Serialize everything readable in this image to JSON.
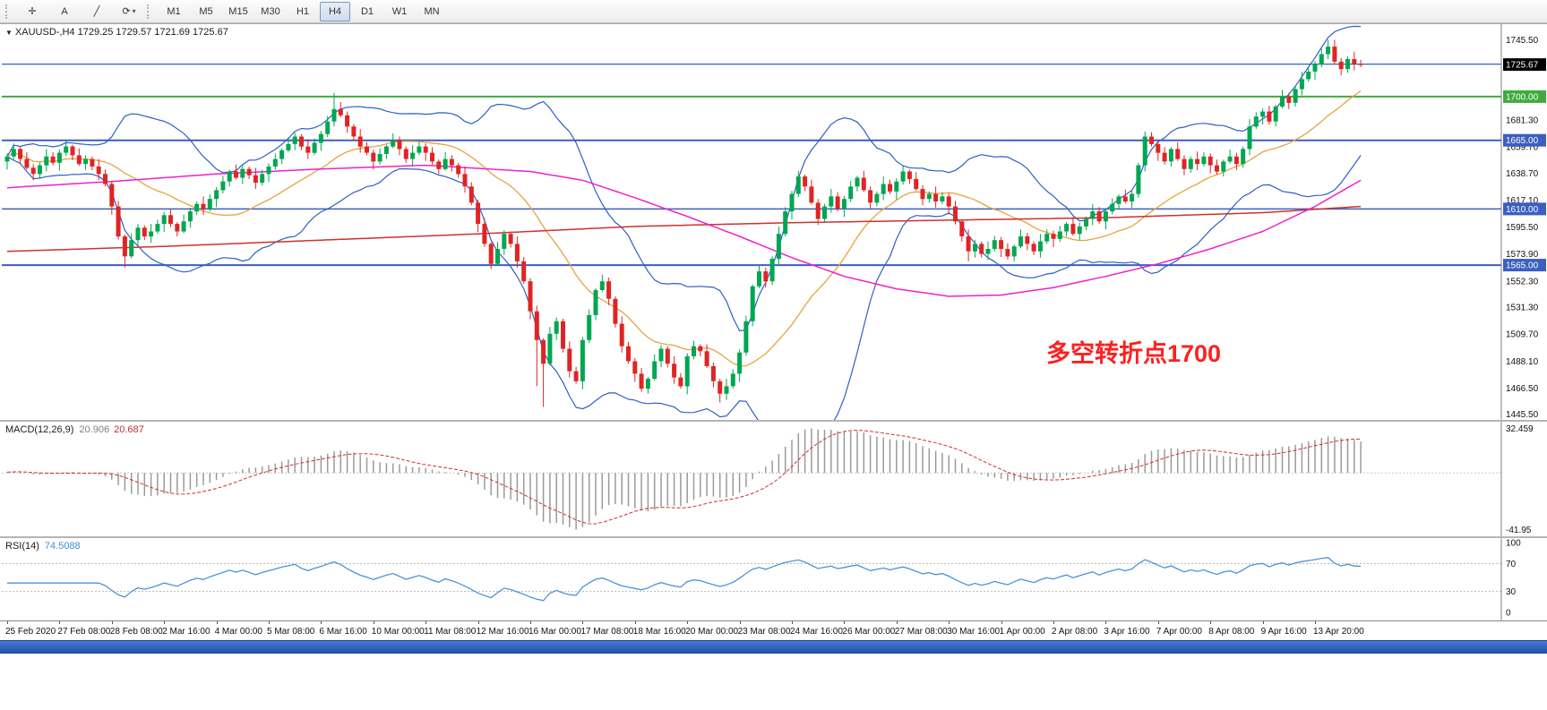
{
  "toolbar": {
    "tools": [
      {
        "name": "crosshair-tool",
        "glyph": "✛",
        "caret": false
      },
      {
        "name": "text-tool",
        "glyph": "A",
        "caret": false
      },
      {
        "name": "trendline-tool",
        "glyph": "╱",
        "caret": false
      },
      {
        "name": "cycle-lines-tool",
        "glyph": "⟳",
        "caret": true
      }
    ],
    "timeframes": [
      "M1",
      "M5",
      "M15",
      "M30",
      "H1",
      "H4",
      "D1",
      "W1",
      "MN"
    ],
    "active_timeframe": "H4"
  },
  "chart": {
    "symbol_line": "XAUUSD-,H4  1729.25 1729.57 1721.69 1725.67",
    "symbol": "XAUUSD-",
    "period": "H4",
    "ohlc": {
      "open": "1729.25",
      "high": "1729.57",
      "low": "1721.69",
      "close": "1725.67"
    },
    "annotation": {
      "text": "多空转折点1700",
      "color": "#ff1f1f"
    }
  },
  "price_axis": {
    "labels": [
      {
        "text": "1745.50",
        "price": 1745.5
      },
      {
        "text": "1681.30",
        "price": 1681.3
      },
      {
        "text": "1659.70",
        "price": 1659.7
      },
      {
        "text": "1638.70",
        "price": 1638.7
      },
      {
        "text": "1617.10",
        "price": 1617.1
      },
      {
        "text": "1595.50",
        "price": 1595.5
      },
      {
        "text": "1573.90",
        "price": 1573.9
      },
      {
        "text": "1552.30",
        "price": 1552.3
      },
      {
        "text": "1531.30",
        "price": 1531.3
      },
      {
        "text": "1509.70",
        "price": 1509.7
      },
      {
        "text": "1488.10",
        "price": 1488.1
      },
      {
        "text": "1466.50",
        "price": 1466.5
      },
      {
        "text": "1445.50",
        "price": 1445.5
      }
    ],
    "tags": [
      {
        "text": "1725.67",
        "price": 1725.67,
        "bg": "#000000"
      },
      {
        "text": "1700.00",
        "price": 1700.0,
        "bg": "#3faa3f"
      },
      {
        "text": "1665.00",
        "price": 1665.0,
        "bg": "#3b5fc0"
      },
      {
        "text": "1610.00",
        "price": 1610.0,
        "bg": "#3b5fc0"
      },
      {
        "text": "1565.00",
        "price": 1565.0,
        "bg": "#3b5fc0"
      }
    ]
  },
  "hlines": [
    {
      "price": 1726.0,
      "color": "#3b5fc0",
      "w": 1.3
    },
    {
      "price": 1700.0,
      "color": "#3faa3f",
      "w": 2
    },
    {
      "price": 1665.0,
      "color": "#3b5fc0",
      "w": 2
    },
    {
      "price": 1610.0,
      "color": "#3b5fc0",
      "w": 1.5
    },
    {
      "price": 1565.0,
      "color": "#3b5fc0",
      "w": 2
    }
  ],
  "macd": {
    "label": "MACD(12,26,9)",
    "value_main": "20.906",
    "value_signal": "20.687",
    "axis": [
      {
        "text": "32.459",
        "v": 33
      },
      {
        "text": "-41.95",
        "v": -42
      }
    ]
  },
  "rsi": {
    "label": "RSI(14)",
    "value": "74.5088",
    "period": 14,
    "levels": [
      70,
      30
    ],
    "axis": [
      {
        "text": "100",
        "v": 100
      },
      {
        "text": "70",
        "v": 70
      },
      {
        "text": "30",
        "v": 30
      },
      {
        "text": "0",
        "v": 0
      }
    ]
  },
  "colors": {
    "up": "#00a651",
    "down": "#e02424",
    "bollinger": "#2f5fc4",
    "ma_fast": "#e8a33d",
    "ma_slow_red": "#d03030",
    "ma_slow_magenta": "#ee22cc",
    "macd_hist": "#9a9a9a",
    "macd_signal": "#d03030",
    "rsi_line": "#4b93d9",
    "axis_text": "#111111"
  },
  "chart_data": {
    "type": "candlestick",
    "symbol": "XAUUSD",
    "timeframe": "H4",
    "price_range": [
      1441,
      1758
    ],
    "first_open": 1648,
    "closes": [
      1652,
      1658,
      1650,
      1643,
      1638,
      1645,
      1652,
      1647,
      1655,
      1660,
      1653,
      1646,
      1650,
      1644,
      1638,
      1630,
      1612,
      1588,
      1572,
      1585,
      1595,
      1588,
      1592,
      1598,
      1605,
      1598,
      1592,
      1600,
      1608,
      1614,
      1610,
      1618,
      1625,
      1632,
      1640,
      1635,
      1642,
      1637,
      1631,
      1638,
      1644,
      1650,
      1657,
      1662,
      1668,
      1660,
      1655,
      1663,
      1670,
      1680,
      1690,
      1685,
      1676,
      1668,
      1660,
      1655,
      1648,
      1654,
      1660,
      1665,
      1658,
      1650,
      1655,
      1660,
      1655,
      1648,
      1642,
      1650,
      1645,
      1638,
      1628,
      1615,
      1598,
      1582,
      1566,
      1578,
      1590,
      1582,
      1568,
      1552,
      1528,
      1505,
      1486,
      1510,
      1520,
      1498,
      1480,
      1472,
      1505,
      1525,
      1545,
      1552,
      1538,
      1518,
      1500,
      1488,
      1478,
      1466,
      1474,
      1488,
      1498,
      1486,
      1475,
      1468,
      1492,
      1500,
      1496,
      1484,
      1472,
      1462,
      1468,
      1478,
      1495,
      1520,
      1548,
      1560,
      1552,
      1570,
      1590,
      1608,
      1622,
      1636,
      1628,
      1615,
      1602,
      1612,
      1620,
      1610,
      1618,
      1628,
      1635,
      1625,
      1615,
      1622,
      1630,
      1624,
      1632,
      1640,
      1634,
      1626,
      1618,
      1622,
      1616,
      1620,
      1612,
      1600,
      1588,
      1576,
      1582,
      1574,
      1578,
      1585,
      1578,
      1572,
      1580,
      1588,
      1582,
      1576,
      1584,
      1590,
      1586,
      1592,
      1598,
      1590,
      1596,
      1602,
      1608,
      1600,
      1608,
      1614,
      1620,
      1616,
      1622,
      1645,
      1668,
      1662,
      1655,
      1648,
      1658,
      1650,
      1642,
      1650,
      1646,
      1652,
      1645,
      1640,
      1648,
      1652,
      1646,
      1658,
      1676,
      1684,
      1688,
      1680,
      1692,
      1700,
      1695,
      1706,
      1714,
      1720,
      1726,
      1734,
      1740,
      1728,
      1722,
      1730,
      1726,
      1725.67
    ],
    "wick_up": [
      2.5,
      4.5,
      1.5,
      5.5,
      3,
      2,
      6,
      3.5
    ],
    "wick_down": [
      3,
      5,
      2,
      6.5,
      2.5,
      4,
      1.5,
      5
    ],
    "wick_overrides": {
      "18": {
        "low": 1563
      },
      "50": {
        "high": 1703
      },
      "81": {
        "low": 1468
      },
      "82": {
        "low": 1451.5
      },
      "109": {
        "low": 1455
      },
      "147": {
        "low": 1568
      },
      "174": {
        "high": 1672
      },
      "202": {
        "high": 1745.5
      }
    },
    "ma_red_points": [
      [
        0,
        1576
      ],
      [
        24,
        1580
      ],
      [
        48,
        1585
      ],
      [
        72,
        1590
      ],
      [
        96,
        1596
      ],
      [
        120,
        1599
      ],
      [
        144,
        1601
      ],
      [
        168,
        1603
      ],
      [
        192,
        1607
      ],
      [
        207,
        1612
      ]
    ],
    "ma_magenta_points": [
      [
        0,
        1627
      ],
      [
        16,
        1632
      ],
      [
        32,
        1638
      ],
      [
        48,
        1642
      ],
      [
        64,
        1645
      ],
      [
        80,
        1640
      ],
      [
        88,
        1633
      ],
      [
        96,
        1619
      ],
      [
        104,
        1604
      ],
      [
        112,
        1588
      ],
      [
        120,
        1571
      ],
      [
        128,
        1556
      ],
      [
        136,
        1546
      ],
      [
        144,
        1540
      ],
      [
        152,
        1541
      ],
      [
        160,
        1547
      ],
      [
        168,
        1556
      ],
      [
        176,
        1566
      ],
      [
        184,
        1578
      ],
      [
        192,
        1592
      ],
      [
        200,
        1612
      ],
      [
        207,
        1633
      ]
    ],
    "x_label_step": 8,
    "x_labels": [
      "25 Feb 2020",
      "27 Feb 08:00",
      "28 Feb 08:00",
      "2 Mar 16:00",
      "4 Mar 00:00",
      "5 Mar 08:00",
      "6 Mar 16:00",
      "10 Mar 00:00",
      "11 Mar 08:00",
      "12 Mar 16:00",
      "16 Mar 00:00",
      "17 Mar 08:00",
      "18 Mar 16:00",
      "20 Mar 00:00",
      "23 Mar 08:00",
      "24 Mar 16:00",
      "26 Mar 00:00",
      "27 Mar 08:00",
      "30 Mar 16:00",
      "1 Apr 00:00",
      "2 Apr 08:00",
      "3 Apr 16:00",
      "7 Apr 00:00",
      "8 Apr 08:00",
      "9 Apr 16:00",
      "13 Apr 20:00"
    ]
  }
}
